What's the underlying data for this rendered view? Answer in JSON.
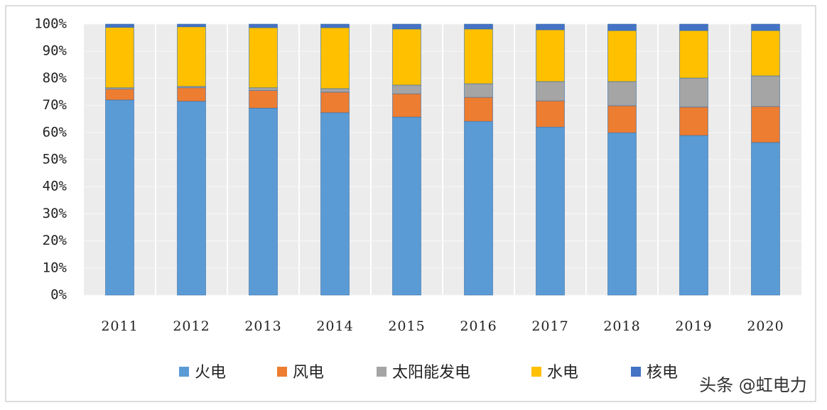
{
  "chart_data": {
    "type": "stacked_bar",
    "categories": [
      "2011",
      "2012",
      "2013",
      "2014",
      "2015",
      "2016",
      "2017",
      "2018",
      "2019",
      "2020"
    ],
    "series": [
      {
        "name": "火电",
        "color": "#5b9bd5",
        "values": [
          72,
          71.5,
          69,
          67.3,
          65.7,
          64.1,
          62,
          59.9,
          58.9,
          56.3
        ]
      },
      {
        "name": "风电",
        "color": "#ed7d31",
        "values": [
          4,
          5,
          6.5,
          7.6,
          8.6,
          8.9,
          9.7,
          10,
          10.5,
          13.3
        ]
      },
      {
        "name": "太阳能发电",
        "color": "#a5a5a5",
        "values": [
          0.5,
          0.5,
          1,
          1.3,
          3.2,
          5,
          7.1,
          8.9,
          10.7,
          11.3
        ]
      },
      {
        "name": "水电",
        "color": "#ffc000",
        "values": [
          22.3,
          22,
          22.2,
          22.5,
          20.7,
          20.2,
          19.1,
          18.8,
          17.5,
          16.7
        ]
      },
      {
        "name": "核电",
        "color": "#4472c4",
        "values": [
          1.2,
          1,
          1.3,
          1.3,
          1.8,
          1.8,
          2.1,
          2.4,
          2.4,
          2.4
        ]
      }
    ],
    "ylim": [
      0,
      100
    ],
    "yticks": [
      {
        "value": 0,
        "label": "0%"
      },
      {
        "value": 10,
        "label": "10%"
      },
      {
        "value": 20,
        "label": "20%"
      },
      {
        "value": 30,
        "label": "30%"
      },
      {
        "value": 40,
        "label": "40%"
      },
      {
        "value": 50,
        "label": "50%"
      },
      {
        "value": 60,
        "label": "60%"
      },
      {
        "value": 70,
        "label": "70%"
      },
      {
        "value": 80,
        "label": "80%"
      },
      {
        "value": 90,
        "label": "90%"
      },
      {
        "value": 100,
        "label": "100%"
      }
    ],
    "grid": true,
    "legend": "bottom",
    "watermark": "头条 @虹电力"
  }
}
